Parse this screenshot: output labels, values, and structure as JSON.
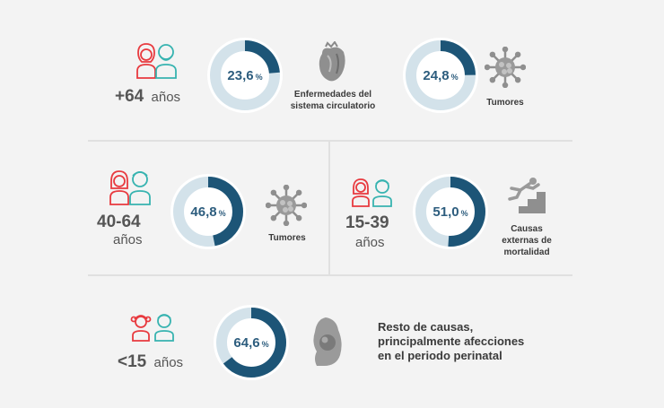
{
  "colors": {
    "background": "#f3f3f3",
    "ring_track": "#d3e2ea",
    "ring_fill": "#1d5577",
    "percent_text": "#2d5d7e",
    "person_red": "#e83a3f",
    "person_teal": "#37b3b0",
    "organ_gray": "#8a8a8a"
  },
  "groups": [
    {
      "id": "65plus",
      "age": "+64",
      "age_unit": "años",
      "percent_value": 23.6,
      "percent_label": "23,6",
      "percent_sign": "%",
      "cause_lines": [
        "Enfermedades del",
        "sistema circulatorio"
      ],
      "icon": "heart-icon",
      "second": {
        "percent_value": 24.8,
        "percent_label": "24,8",
        "percent_sign": "%",
        "cause_lines": [
          "Tumores"
        ],
        "icon": "tumor-cell-icon"
      }
    },
    {
      "id": "40to64",
      "age": "40-64",
      "age_unit": "años",
      "percent_value": 46.8,
      "percent_label": "46,8",
      "percent_sign": "%",
      "cause_lines": [
        "Tumores"
      ],
      "icon": "tumor-cell-icon"
    },
    {
      "id": "15to39",
      "age": "15-39",
      "age_unit": "años",
      "percent_value": 51.0,
      "percent_label": "51,0",
      "percent_sign": "%",
      "cause_lines": [
        "Causas",
        "externas de",
        "mortalidad"
      ],
      "icon": "falling-person-icon"
    },
    {
      "id": "under15",
      "age": "<15",
      "age_unit": "años",
      "percent_value": 64.6,
      "percent_label": "64,6",
      "percent_sign": "%",
      "cause_lines": [
        "Resto de causas,",
        "principalmente afecciones",
        "en el periodo perinatal"
      ],
      "icon": "pregnancy-icon"
    }
  ]
}
